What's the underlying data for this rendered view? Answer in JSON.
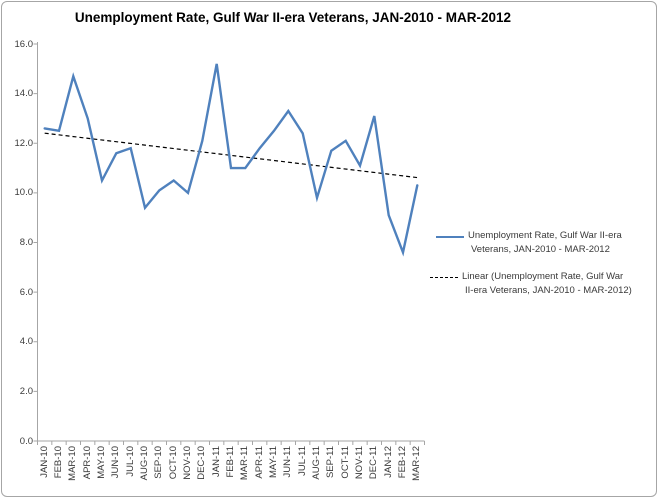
{
  "title": "Unemployment Rate, Gulf War II-era Veterans, JAN-2010 - MAR-2012",
  "chart_data": {
    "type": "line",
    "title": "Unemployment Rate, Gulf War II-era Veterans, JAN-2010 - MAR-2012",
    "categories": [
      "JAN-10",
      "FEB-10",
      "MAR-10",
      "APR-10",
      "MAY-10",
      "JUN-10",
      "JUL-10",
      "AUG-10",
      "SEP-10",
      "OCT-10",
      "NOV-10",
      "DEC-10",
      "JAN-11",
      "FEB-11",
      "MAR-11",
      "APR-11",
      "MAY-11",
      "JUN-11",
      "JUL-11",
      "AUG-11",
      "SEP-11",
      "OCT-11",
      "NOV-11",
      "DEC-11",
      "JAN-12",
      "FEB-12",
      "MAR-12"
    ],
    "series": [
      {
        "name": "Unemployment Rate, Gulf War II-era Veterans, JAN-2010 - MAR-2012",
        "color": "#4F81BD",
        "values": [
          12.6,
          12.5,
          14.7,
          13.0,
          10.5,
          11.6,
          11.8,
          9.4,
          10.1,
          10.5,
          10.0,
          12.1,
          15.2,
          11.0,
          11.0,
          11.8,
          12.5,
          13.3,
          12.4,
          9.8,
          11.7,
          12.1,
          11.1,
          13.1,
          9.1,
          7.6,
          10.3
        ]
      }
    ],
    "trendline": {
      "name": "Linear (Unemployment Rate, Gulf War II-era Veterans, JAN-2010 - MAR-2012)",
      "style": "dashed",
      "color": "#000000"
    },
    "ylim": [
      0,
      16
    ],
    "y_ticks": [
      "0.0",
      "2.0",
      "4.0",
      "6.0",
      "8.0",
      "10.0",
      "12.0",
      "14.0",
      "16.0"
    ],
    "xlabel": "",
    "ylabel": "",
    "grid": false,
    "legend_position": "right"
  },
  "legend": {
    "entries": [
      {
        "key": "solid-blue-line",
        "lines": [
          "Unemployment Rate, Gulf War II-era",
          "Veterans, JAN-2010 - MAR-2012"
        ]
      },
      {
        "key": "dashed-black-line",
        "lines": [
          "Linear (Unemployment Rate, Gulf War",
          "II-era Veterans, JAN-2010 - MAR-2012)"
        ]
      }
    ]
  },
  "colors": {
    "series": "#4F81BD",
    "trend": "#000000",
    "axis": "#a6a6a6",
    "labels": "#3a3a3a"
  }
}
